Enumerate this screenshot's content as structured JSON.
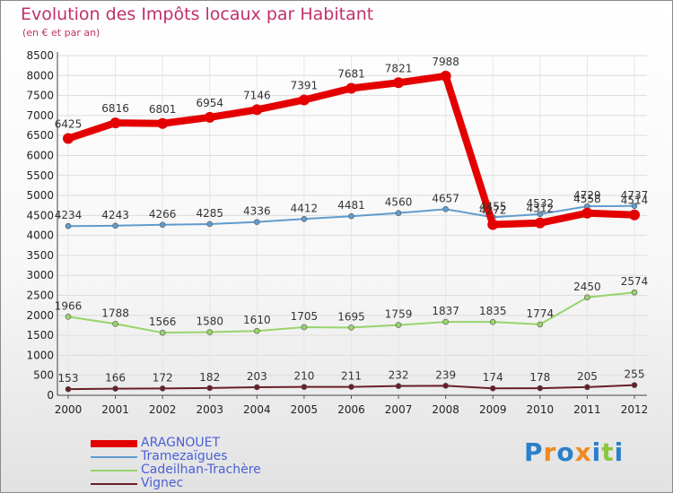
{
  "chart_data": {
    "type": "line",
    "title": "Evolution des Impôts locaux par Habitant",
    "subtitle": "(en € et par an)",
    "x": [
      "2000",
      "2001",
      "2002",
      "2003",
      "2004",
      "2005",
      "2006",
      "2007",
      "2008",
      "2009",
      "2010",
      "2011",
      "2012"
    ],
    "ylim": [
      0,
      8500
    ],
    "yticks": [
      0,
      500,
      1000,
      1500,
      2000,
      2500,
      3000,
      3500,
      4000,
      4500,
      5000,
      5500,
      6000,
      6500,
      7000,
      7500,
      8000,
      8500
    ],
    "series": [
      {
        "name": "ARAGNOUET",
        "color": "#e40000",
        "values": [
          6425,
          6816,
          6801,
          6954,
          7146,
          7391,
          7681,
          7821,
          7988,
          4272,
          4312,
          4558,
          4514
        ]
      },
      {
        "name": "Tramezaïgues",
        "color": "#5f9ccf",
        "values": [
          4234,
          4243,
          4266,
          4285,
          4336,
          4412,
          4481,
          4560,
          4657,
          4455,
          4532,
          4729,
          4737
        ]
      },
      {
        "name": "Cadeilhan-Trachère",
        "color": "#98d46a",
        "values": [
          1966,
          1788,
          1566,
          1580,
          1610,
          1705,
          1695,
          1759,
          1837,
          1835,
          1774,
          2450,
          2574
        ]
      },
      {
        "name": "Vignec",
        "color": "#6a1f28",
        "values": [
          153,
          166,
          172,
          182,
          203,
          210,
          211,
          232,
          239,
          174,
          178,
          205,
          255
        ]
      }
    ]
  },
  "brand": {
    "name": "Proxiti",
    "letters": [
      "P",
      "r",
      "o",
      "x",
      "i",
      "t",
      "i"
    ],
    "letter_colors": [
      "#2c7fc9",
      "#f08a1e",
      "#2c7fc9",
      "#f08a1e",
      "#2c7fc9",
      "#8cc63f",
      "#2c7fc9"
    ]
  }
}
